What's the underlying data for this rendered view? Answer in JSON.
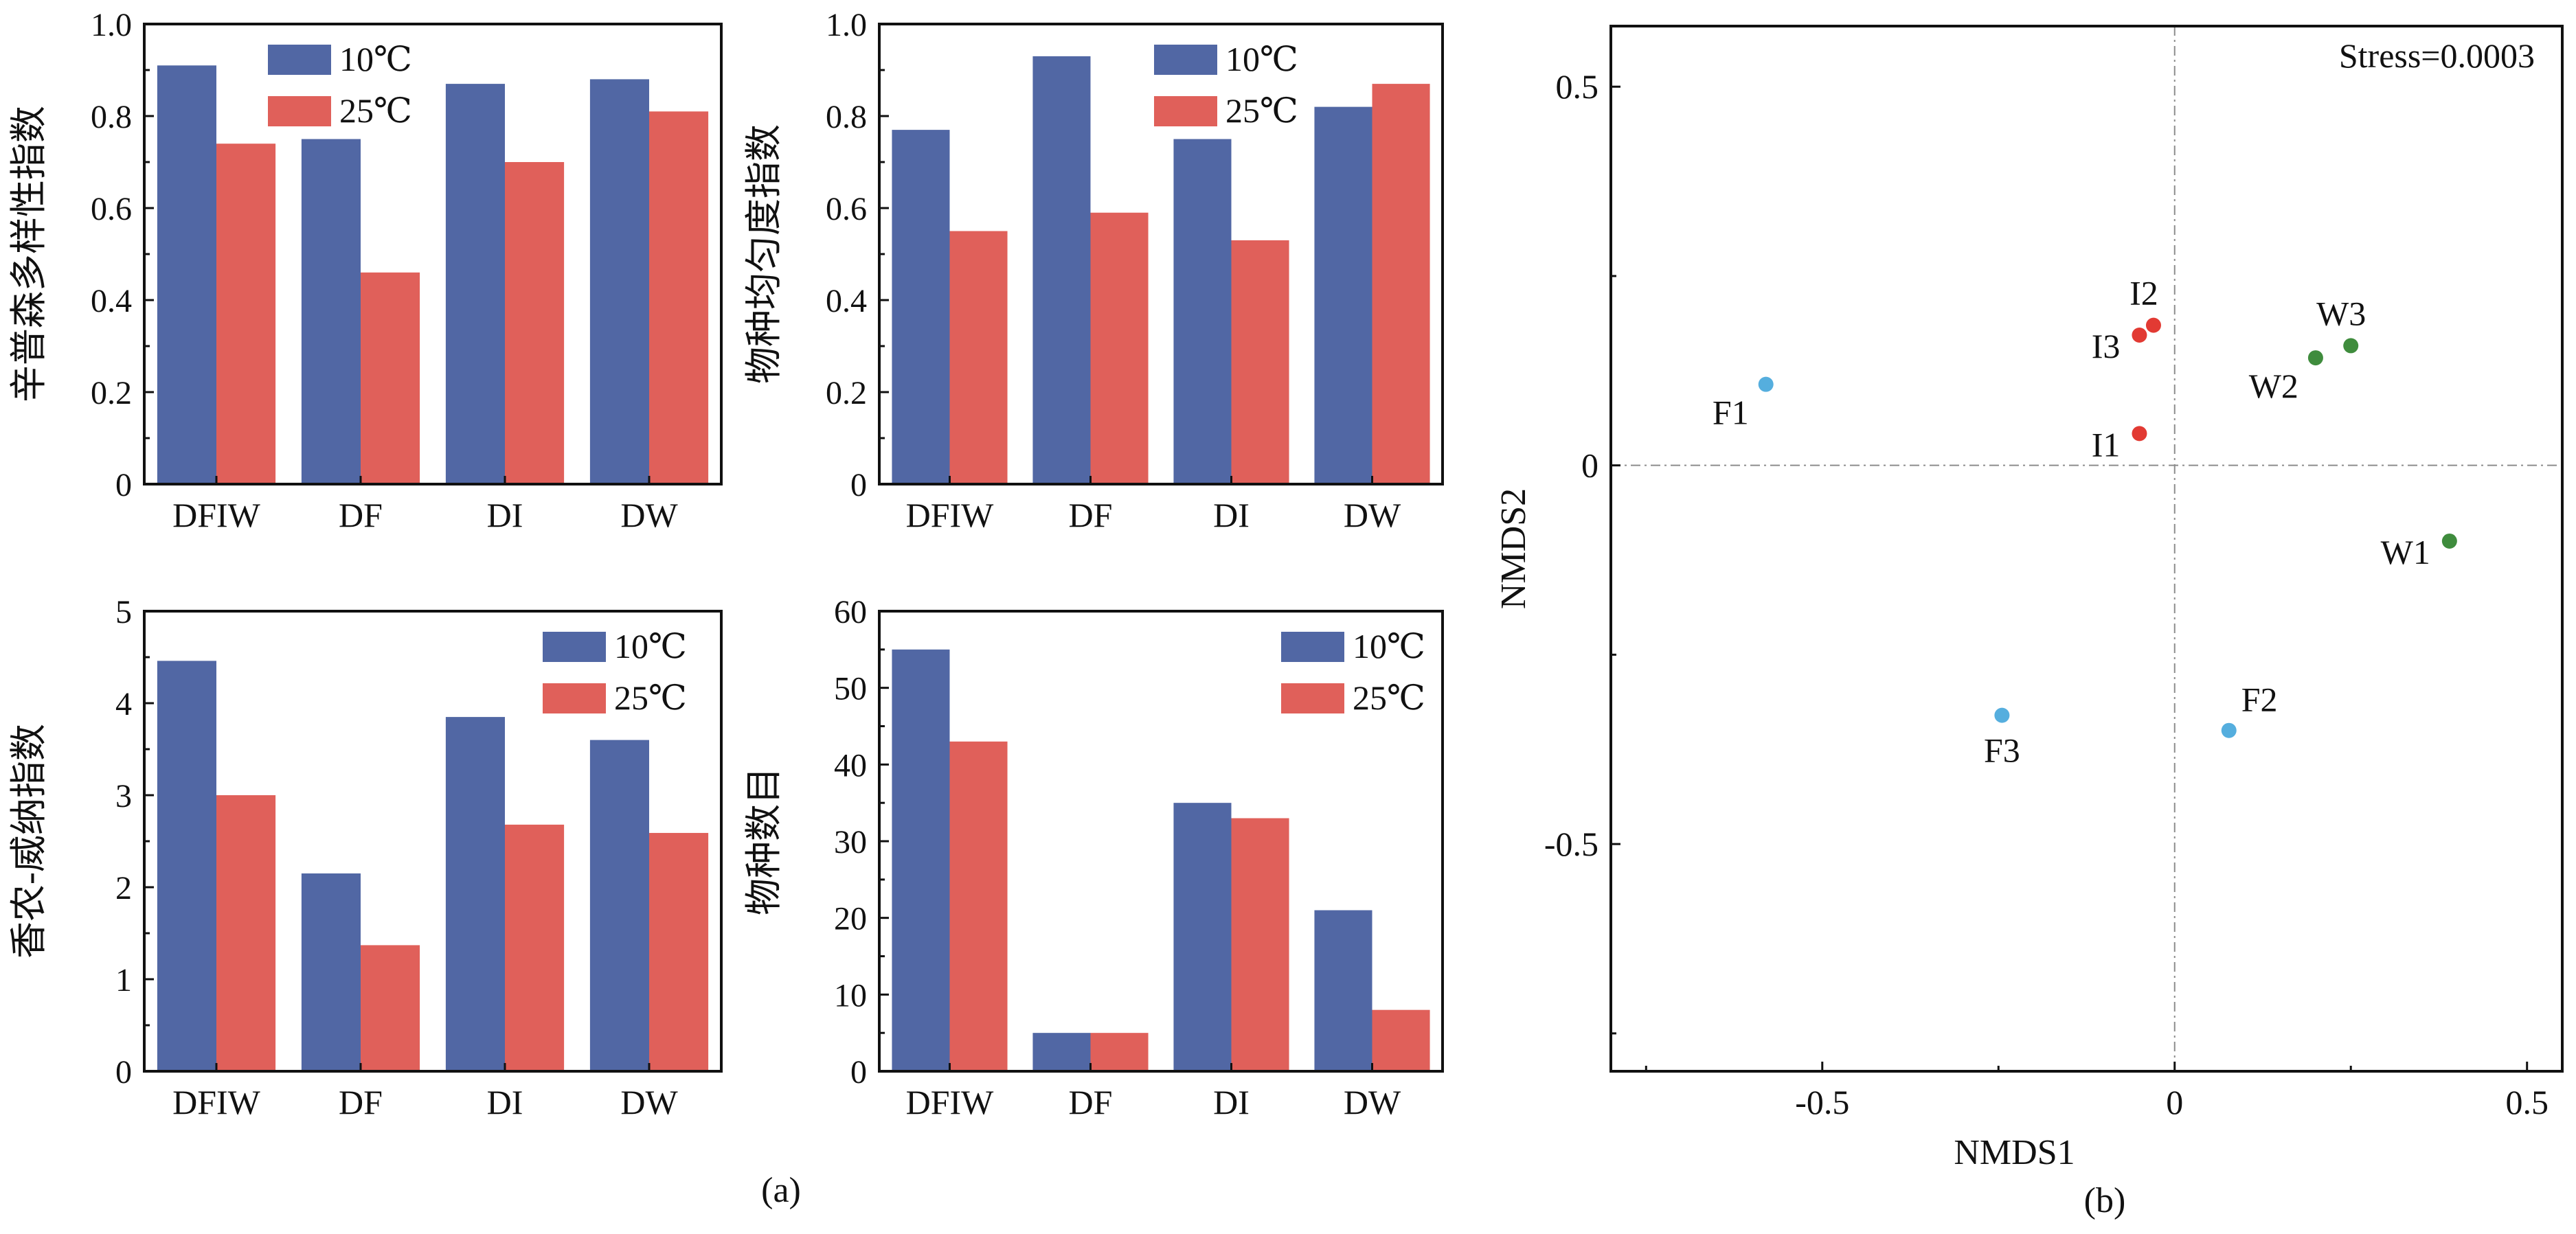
{
  "figure_labels": {
    "a": "(a)",
    "b": "(b)"
  },
  "colors": {
    "c10": "#5167a4",
    "c25": "#e0605a",
    "blue_pt": "#55aede",
    "red_pt": "#e23a33",
    "green_pt": "#3f8c3d",
    "axis": "#111111",
    "refline": "#8c8c8c"
  },
  "chart_data": [
    {
      "type": "bar",
      "ylabel": "辛普森多样性指数",
      "categories": [
        "DFIW",
        "DF",
        "DI",
        "DW"
      ],
      "ylim": [
        0,
        1.0
      ],
      "yticks": [
        "0",
        "0.2",
        "0.4",
        "0.6",
        "0.8",
        "1.0"
      ],
      "legend_position": "top-left",
      "series": [
        {
          "name": "10℃",
          "values": [
            0.91,
            0.75,
            0.87,
            0.88
          ]
        },
        {
          "name": "25℃",
          "values": [
            0.74,
            0.46,
            0.7,
            0.81
          ]
        }
      ]
    },
    {
      "type": "bar",
      "ylabel": "物种均匀度指数",
      "categories": [
        "DFIW",
        "DF",
        "DI",
        "DW"
      ],
      "ylim": [
        0,
        1.0
      ],
      "yticks": [
        "0",
        "0.2",
        "0.4",
        "0.6",
        "0.8",
        "1.0"
      ],
      "legend_position": "top-right",
      "series": [
        {
          "name": "10℃",
          "values": [
            0.77,
            0.93,
            0.75,
            0.82
          ]
        },
        {
          "name": "25℃",
          "values": [
            0.55,
            0.59,
            0.53,
            0.87
          ]
        }
      ]
    },
    {
      "type": "bar",
      "ylabel": "香农-威纳指数",
      "categories": [
        "DFIW",
        "DF",
        "DI",
        "DW"
      ],
      "ylim": [
        0,
        5
      ],
      "yticks": [
        "0",
        "1",
        "2",
        "3",
        "4",
        "5"
      ],
      "legend_position": "top-right",
      "series": [
        {
          "name": "10℃",
          "values": [
            4.46,
            2.15,
            3.85,
            3.6
          ]
        },
        {
          "name": "25℃",
          "values": [
            3.0,
            1.37,
            2.68,
            2.59
          ]
        }
      ]
    },
    {
      "type": "bar",
      "ylabel": "物种数目",
      "categories": [
        "DFIW",
        "DF",
        "DI",
        "DW"
      ],
      "ylim": [
        0,
        60
      ],
      "yticks": [
        "0",
        "10",
        "20",
        "30",
        "40",
        "50",
        "60"
      ],
      "legend_position": "top-right",
      "series": [
        {
          "name": "10℃",
          "values": [
            55,
            5,
            35,
            21
          ]
        },
        {
          "name": "25℃",
          "values": [
            43,
            5,
            33,
            8
          ]
        }
      ]
    },
    {
      "type": "scatter",
      "xlabel": "NMDS1",
      "ylabel": "NMDS2",
      "annotation": "Stress=0.0003",
      "xlim": [
        -0.8,
        0.55
      ],
      "ylim": [
        -0.8,
        0.58
      ],
      "xticks": [
        -0.5,
        0,
        0.5
      ],
      "xtick_labels": [
        "-0.5",
        "0",
        "0.5"
      ],
      "yticks": [
        -0.5,
        0,
        0.5
      ],
      "ytick_labels": [
        "-0.5",
        "0",
        "0.5"
      ],
      "reference_lines": {
        "x": 0,
        "y": 0,
        "style": "dash-dot"
      },
      "points": [
        {
          "label": "F1",
          "x": -0.58,
          "y": 0.107,
          "color": "blue_pt",
          "label_pos": "below-left"
        },
        {
          "label": "F2",
          "x": 0.077,
          "y": -0.35,
          "color": "blue_pt",
          "label_pos": "above-right"
        },
        {
          "label": "F3",
          "x": -0.245,
          "y": -0.33,
          "color": "blue_pt",
          "label_pos": "below"
        },
        {
          "label": "I1",
          "x": -0.05,
          "y": 0.042,
          "color": "red_pt",
          "label_pos": "left"
        },
        {
          "label": "I2",
          "x": -0.03,
          "y": 0.185,
          "color": "red_pt",
          "label_pos": "above"
        },
        {
          "label": "I3",
          "x": -0.05,
          "y": 0.172,
          "color": "red_pt",
          "label_pos": "left"
        },
        {
          "label": "W1",
          "x": 0.39,
          "y": -0.1,
          "color": "green_pt",
          "label_pos": "left"
        },
        {
          "label": "W2",
          "x": 0.2,
          "y": 0.142,
          "color": "green_pt",
          "label_pos": "below-left"
        },
        {
          "label": "W3",
          "x": 0.25,
          "y": 0.158,
          "color": "green_pt",
          "label_pos": "above"
        }
      ]
    }
  ]
}
